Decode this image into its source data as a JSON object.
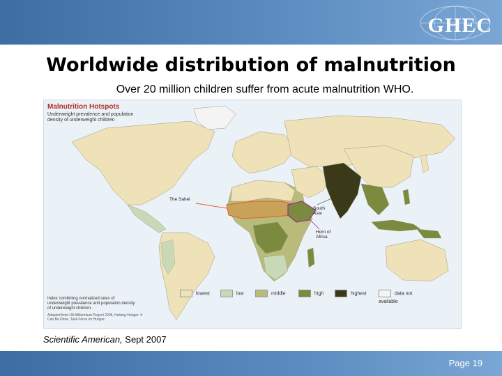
{
  "header": {
    "logo_text": "GHEC"
  },
  "slide": {
    "title": "Worldwide distribution of malnutrition",
    "subtitle": "Over 20 million children suffer from acute malnutrition WHO.",
    "citation_source": "Scientific American,",
    "citation_date": " Sept 2007",
    "page_label": "Page 19"
  },
  "map": {
    "title": "Malnutrition Hotspots",
    "subtitle": "Underweight prevalence and population density of underweight children",
    "annotations": {
      "sahel": "The Sahel",
      "south_asia": "South Asia",
      "horn": "Horn of Africa"
    },
    "legend": [
      {
        "label": "lowest",
        "color": "#efe1b8"
      },
      {
        "label": "low",
        "color": "#c9d8b6"
      },
      {
        "label": "middle",
        "color": "#b8bb7a"
      },
      {
        "label": "high",
        "color": "#7b8a3e"
      },
      {
        "label": "highest",
        "color": "#3a3a18"
      },
      {
        "label": "data not available",
        "color": "#f4f4f4"
      }
    ],
    "index_note": "Index combining normalized rates of underweight prevalence and population density of underweight children.",
    "source_note": "Adapted from UN Millennium Project 2005, Halving Hunger: It Can Be Done, Task Force on Hunger.",
    "colors": {
      "ocean": "#eaf1f7",
      "land_default": "#efe1b8",
      "sahel_marker": "#e0602a",
      "horn_marker": "#9a2f8a"
    }
  }
}
